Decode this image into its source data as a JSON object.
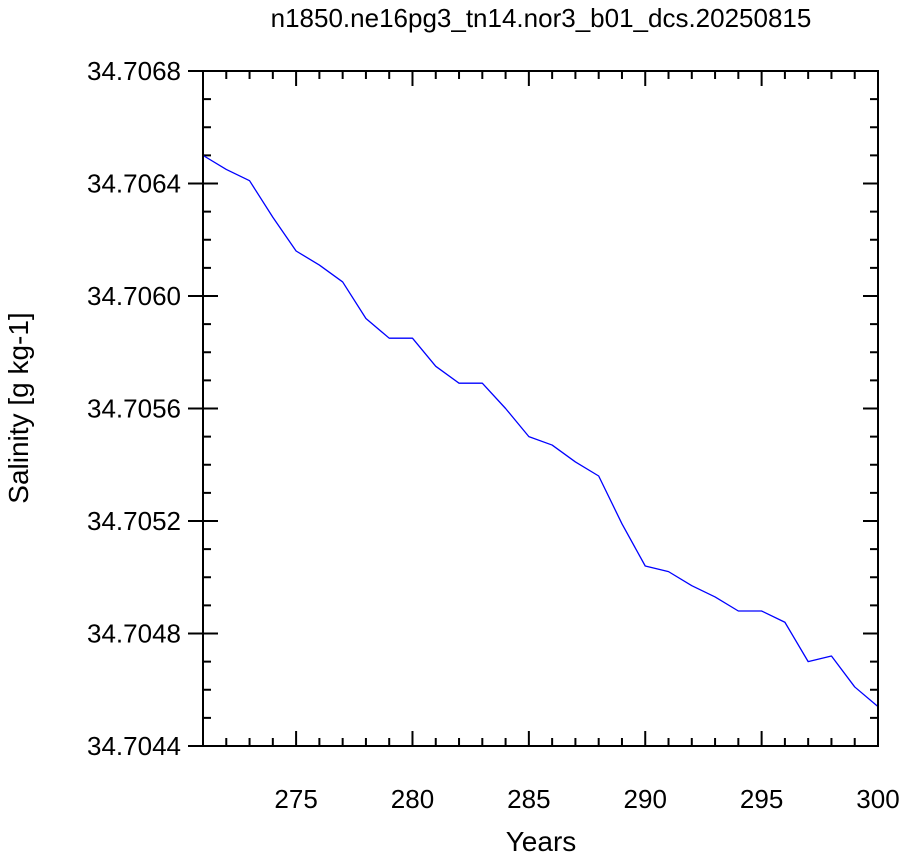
{
  "chart_data": {
    "type": "line",
    "title": "n1850.ne16pg3_tn14.nor3_b01_dcs.20250815",
    "xlabel": "Years",
    "ylabel": "Salinity [g kg-1]",
    "xlim": [
      271,
      300
    ],
    "ylim": [
      34.7044,
      34.7068
    ],
    "x_ticks": [
      "275",
      "280",
      "285",
      "290",
      "295",
      "300"
    ],
    "y_ticks": [
      "34.7044",
      "34.7048",
      "34.7052",
      "34.7056",
      "34.7060",
      "34.7064",
      "34.7068"
    ],
    "grid": false,
    "legend": "none",
    "series": [
      {
        "color": "#0000ff",
        "x": [
          271,
          272,
          273,
          274,
          275,
          276,
          277,
          278,
          279,
          280,
          281,
          282,
          283,
          284,
          285,
          286,
          287,
          288,
          289,
          290,
          291,
          292,
          293,
          294,
          295,
          296,
          297,
          298,
          299,
          300
        ],
        "values": [
          34.7065,
          34.70645,
          34.70641,
          34.70628,
          34.70616,
          34.70611,
          34.70605,
          34.70592,
          34.70585,
          34.70585,
          34.70575,
          34.70569,
          34.70569,
          34.7056,
          34.7055,
          34.70547,
          34.70541,
          34.70536,
          34.70519,
          34.70504,
          34.70502,
          34.70497,
          34.70493,
          34.70488,
          34.70488,
          34.70484,
          34.7047,
          34.70472,
          34.70461,
          34.70454
        ]
      }
    ]
  }
}
